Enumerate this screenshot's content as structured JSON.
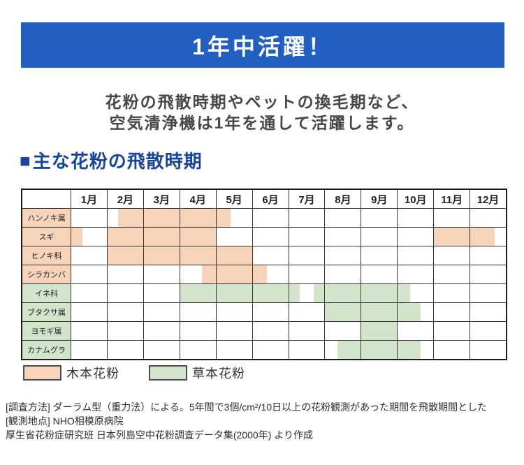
{
  "banner": {
    "text": "1年中活躍！",
    "bg_color": "#2160c2",
    "text_color": "#ffffff"
  },
  "subtitle": {
    "lines": [
      "花粉の飛散時期やペットの換毛期など、",
      "空気清浄機は1年を通して活躍します。"
    ]
  },
  "section": {
    "marker": "■",
    "title": "主な花粉の飛散時期",
    "color": "#17469e"
  },
  "chart_data": {
    "type": "gantt",
    "title": "主な花粉の飛散時期",
    "x_unit": "month",
    "x_range": [
      0,
      12
    ],
    "categories": [
      "1月",
      "2月",
      "3月",
      "4月",
      "5月",
      "6月",
      "7月",
      "8月",
      "9月",
      "10月",
      "11月",
      "12月"
    ],
    "grid": true,
    "colors": {
      "tree": "#f6d3b9",
      "herb": "#d2e4c9"
    },
    "rows": [
      {
        "label": "ハンノキ属",
        "group": "tree",
        "segments": [
          [
            1.3,
            4.4
          ]
        ]
      },
      {
        "label": "スギ",
        "group": "tree",
        "segments": [
          [
            0,
            0.3
          ],
          [
            1,
            4
          ],
          [
            10,
            11.7
          ]
        ]
      },
      {
        "label": "ヒノキ科",
        "group": "tree",
        "segments": [
          [
            1,
            5
          ]
        ]
      },
      {
        "label": "シラカンバ",
        "group": "tree",
        "segments": [
          [
            3.6,
            5.4
          ]
        ]
      },
      {
        "label": "イネ科",
        "group": "herb",
        "segments": [
          [
            3,
            6.3
          ],
          [
            6.7,
            9.35
          ]
        ]
      },
      {
        "label": "ブタクサ属",
        "group": "herb",
        "segments": [
          [
            7,
            9.65
          ]
        ]
      },
      {
        "label": "ヨモギ属",
        "group": "herb",
        "segments": [
          [
            8,
            9
          ]
        ]
      },
      {
        "label": "カナムグラ",
        "group": "herb",
        "segments": [
          [
            7.35,
            9.65
          ]
        ]
      }
    ],
    "legend": [
      {
        "label": "木本花粉",
        "group": "tree"
      },
      {
        "label": "草本花粉",
        "group": "herb"
      }
    ],
    "legend_position": "bottom-left"
  },
  "footnotes": {
    "lines": [
      "[調査方法] ダーラム型（重力法）による。5年間で3個/cm²/10日以上の花粉観測があった期間を飛散期間とした",
      "[観測地点] NHO相模原病院",
      "厚生省花粉症研究班 日本列島空中花粉調査データ集(2000年) より作成"
    ]
  }
}
